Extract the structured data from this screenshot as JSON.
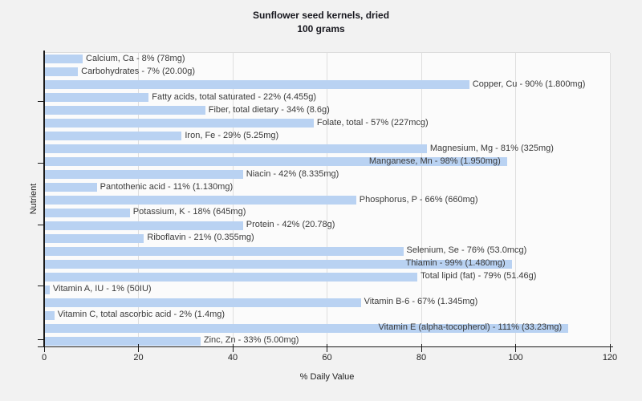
{
  "chart_data": {
    "type": "bar",
    "orientation": "horizontal",
    "title": "Sunflower seed kernels, dried",
    "subtitle": "100 grams",
    "xlabel": "% Daily Value",
    "ylabel": "Nutrient",
    "xlim": [
      0,
      120
    ],
    "xticks": [
      0,
      20,
      40,
      60,
      80,
      100,
      120
    ],
    "grid": "vertical",
    "legend": "none",
    "bar_color": "#b9d2f2",
    "plot_bg_color": "#fbfbfb",
    "page_bg_color": "#f2f2f2",
    "categories": [
      "Calcium, Ca",
      "Carbohydrates",
      "Copper, Cu",
      "Fatty acids, total saturated",
      "Fiber, total dietary",
      "Folate, total",
      "Iron, Fe",
      "Magnesium, Mg",
      "Manganese, Mn",
      "Niacin",
      "Pantothenic acid",
      "Phosphorus, P",
      "Potassium, K",
      "Protein",
      "Riboflavin",
      "Selenium, Se",
      "Thiamin",
      "Total lipid (fat)",
      "Vitamin A, IU",
      "Vitamin B-6",
      "Vitamin C, total ascorbic acid",
      "Vitamin E (alpha-tocopherol)",
      "Zinc, Zn"
    ],
    "values": [
      8,
      7,
      90,
      22,
      34,
      57,
      29,
      81,
      98,
      42,
      11,
      66,
      18,
      42,
      21,
      76,
      99,
      79,
      1,
      67,
      2,
      111,
      33
    ],
    "items": [
      {
        "name": "Calcium, Ca",
        "percent": 8,
        "amount": "78mg",
        "label": "Calcium, Ca - 8% (78mg)"
      },
      {
        "name": "Carbohydrates",
        "percent": 7,
        "amount": "20.00g",
        "label": "Carbohydrates - 7% (20.00g)"
      },
      {
        "name": "Copper, Cu",
        "percent": 90,
        "amount": "1.800mg",
        "label": "Copper, Cu - 90% (1.800mg)"
      },
      {
        "name": "Fatty acids, total saturated",
        "percent": 22,
        "amount": "4.455g",
        "label": "Fatty acids, total saturated - 22% (4.455g)"
      },
      {
        "name": "Fiber, total dietary",
        "percent": 34,
        "amount": "8.6g",
        "label": "Fiber, total dietary - 34% (8.6g)"
      },
      {
        "name": "Folate, total",
        "percent": 57,
        "amount": "227mcg",
        "label": "Folate, total - 57% (227mcg)"
      },
      {
        "name": "Iron, Fe",
        "percent": 29,
        "amount": "5.25mg",
        "label": "Iron, Fe - 29% (5.25mg)"
      },
      {
        "name": "Magnesium, Mg",
        "percent": 81,
        "amount": "325mg",
        "label": "Magnesium, Mg - 81% (325mg)"
      },
      {
        "name": "Manganese, Mn",
        "percent": 98,
        "amount": "1.950mg",
        "label": "Manganese, Mn - 98% (1.950mg)"
      },
      {
        "name": "Niacin",
        "percent": 42,
        "amount": "8.335mg",
        "label": "Niacin - 42% (8.335mg)"
      },
      {
        "name": "Pantothenic acid",
        "percent": 11,
        "amount": "1.130mg",
        "label": "Pantothenic acid - 11% (1.130mg)"
      },
      {
        "name": "Phosphorus, P",
        "percent": 66,
        "amount": "660mg",
        "label": "Phosphorus, P - 66% (660mg)"
      },
      {
        "name": "Potassium, K",
        "percent": 18,
        "amount": "645mg",
        "label": "Potassium, K - 18% (645mg)"
      },
      {
        "name": "Protein",
        "percent": 42,
        "amount": "20.78g",
        "label": "Protein - 42% (20.78g)"
      },
      {
        "name": "Riboflavin",
        "percent": 21,
        "amount": "0.355mg",
        "label": "Riboflavin - 21% (0.355mg)"
      },
      {
        "name": "Selenium, Se",
        "percent": 76,
        "amount": "53.0mcg",
        "label": "Selenium, Se - 76% (53.0mcg)"
      },
      {
        "name": "Thiamin",
        "percent": 99,
        "amount": "1.480mg",
        "label": "Thiamin - 99% (1.480mg)"
      },
      {
        "name": "Total lipid (fat)",
        "percent": 79,
        "amount": "51.46g",
        "label": "Total lipid (fat) - 79% (51.46g)"
      },
      {
        "name": "Vitamin A, IU",
        "percent": 1,
        "amount": "50IU",
        "label": "Vitamin A, IU - 1% (50IU)"
      },
      {
        "name": "Vitamin B-6",
        "percent": 67,
        "amount": "1.345mg",
        "label": "Vitamin B-6 - 67% (1.345mg)"
      },
      {
        "name": "Vitamin C, total ascorbic acid",
        "percent": 2,
        "amount": "1.4mg",
        "label": "Vitamin C, total ascorbic acid - 2% (1.4mg)"
      },
      {
        "name": "Vitamin E (alpha-tocopherol)",
        "percent": 111,
        "amount": "33.23mg",
        "label": "Vitamin E (alpha-tocopherol) - 111% (33.23mg)"
      },
      {
        "name": "Zinc, Zn",
        "percent": 33,
        "amount": "5.00mg",
        "label": "Zinc, Zn - 33% (5.00mg)"
      }
    ]
  }
}
